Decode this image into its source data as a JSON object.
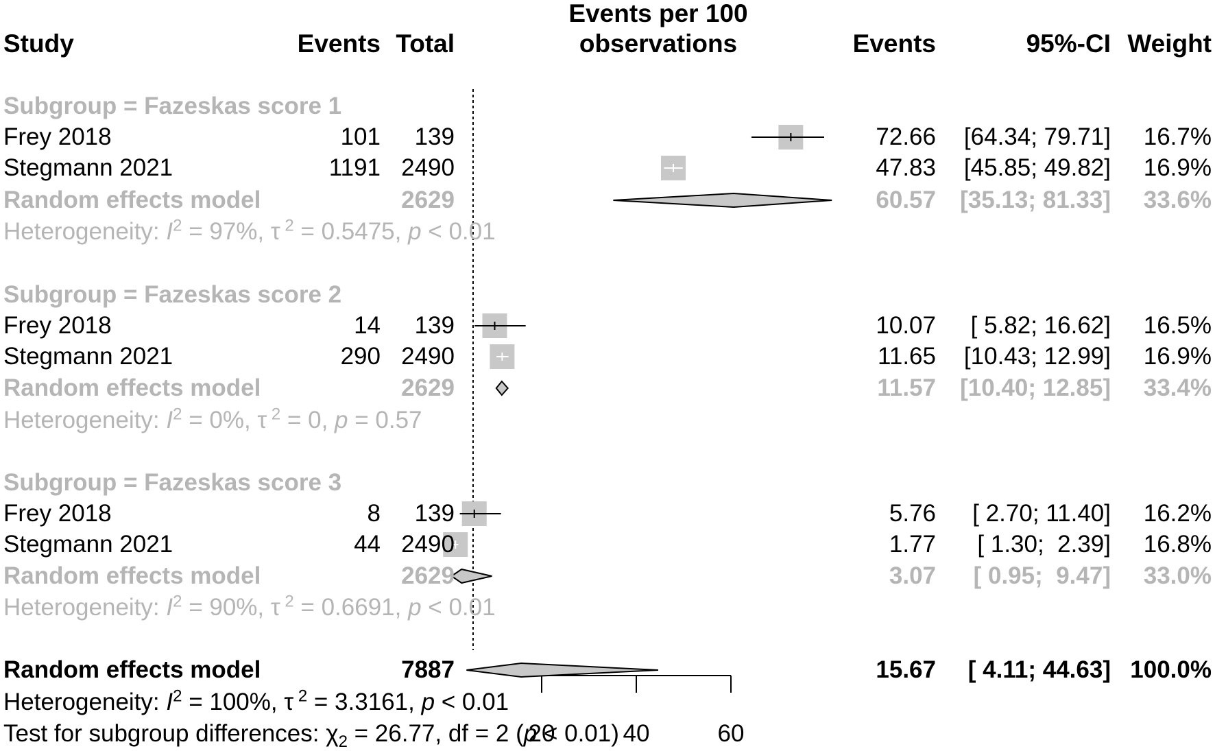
{
  "headers": {
    "study": "Study",
    "events": "Events",
    "total": "Total",
    "plot_title_line1": "Events per 100",
    "plot_title_line2": "observations",
    "events_rate": "Events",
    "ci": "95%-CI",
    "weight": "Weight"
  },
  "subgroups": [
    {
      "title": "Subgroup = Fazeskas score 1",
      "rows": [
        {
          "study": "Frey 2018",
          "events": "101",
          "total": "139",
          "rate": "72.66",
          "ci": "[64.34; 79.71]",
          "weight": "16.7%"
        },
        {
          "study": "Stegmann 2021",
          "events": "1191",
          "total": "2490",
          "rate": "47.83",
          "ci": "[45.85; 49.82]",
          "weight": "16.9%"
        }
      ],
      "model": {
        "label": "Random effects model",
        "total": "2629",
        "rate": "60.57",
        "ci": "[35.13; 81.33]",
        "weight": "33.6%"
      },
      "het": {
        "prefix": "Heterogeneity: ",
        "I": "I",
        "I2_val": " = 97%, ",
        "tau": "τ",
        "tau_val": " = 0.5475, ",
        "p": "p",
        "p_val": " < 0.01"
      }
    },
    {
      "title": "Subgroup = Fazeskas score 2",
      "rows": [
        {
          "study": "Frey 2018",
          "events": "14",
          "total": "139",
          "rate": "10.07",
          "ci": "[ 5.82; 16.62]",
          "weight": "16.5%"
        },
        {
          "study": "Stegmann 2021",
          "events": "290",
          "total": "2490",
          "rate": "11.65",
          "ci": "[10.43; 12.99]",
          "weight": "16.9%"
        }
      ],
      "model": {
        "label": "Random effects model",
        "total": "2629",
        "rate": "11.57",
        "ci": "[10.40; 12.85]",
        "weight": "33.4%"
      },
      "het": {
        "prefix": "Heterogeneity: ",
        "I": "I",
        "I2_val": " = 0%, ",
        "tau": "τ",
        "tau_val": " = 0, ",
        "p": "p",
        "p_val": " = 0.57"
      }
    },
    {
      "title": "Subgroup = Fazeskas score 3",
      "rows": [
        {
          "study": "Frey 2018",
          "events": "8",
          "total": "139",
          "rate": "5.76",
          "ci": "[ 2.70; 11.40]",
          "weight": "16.2%"
        },
        {
          "study": "Stegmann 2021",
          "events": "44",
          "total": "2490",
          "rate": "1.77",
          "ci": "[ 1.30;  2.39]",
          "weight": "16.8%"
        }
      ],
      "model": {
        "label": "Random effects model",
        "total": "2629",
        "rate": "3.07",
        "ci": "[ 0.95;  9.47]",
        "weight": "33.0%"
      },
      "het": {
        "prefix": "Heterogeneity: ",
        "I": "I",
        "I2_val": " = 90%, ",
        "tau": "τ",
        "tau_val": " = 0.6691, ",
        "p": "p",
        "p_val": " < 0.01"
      }
    }
  ],
  "overall": {
    "label": "Random effects model",
    "total": "7887",
    "rate": "15.67",
    "ci": "[ 4.11; 44.63]",
    "weight": "100.0%",
    "het": {
      "prefix": "Heterogeneity: ",
      "I": "I",
      "I2_val": " = 100%, ",
      "tau": "τ",
      "tau_val": " = 3.3161, ",
      "p": "p",
      "p_val": " < 0.01"
    },
    "test": {
      "prefix": "Test for subgroup differences: ",
      "chi": "χ",
      "chi_sub": "2",
      "chi_val": " = 26.77, df = 2 (",
      "p": "p",
      "p_val": " < 0.01)"
    }
  },
  "colors": {
    "box": "#c8c8c8",
    "diamond": "#c8c8c8",
    "line": "#000000",
    "subgroup_text": "#b5b5b5"
  },
  "chart_data": {
    "type": "forest",
    "title": "Events per 100 observations",
    "xlabel": "Events per 100 observations",
    "ticks": [
      20,
      40,
      60
    ],
    "xlim": [
      20,
      60
    ],
    "reference_line": 5.5,
    "studies": [
      {
        "subgroup": 1,
        "name": "Frey 2018",
        "est": 72.66,
        "lo": 64.34,
        "hi": 79.71,
        "weight": 16.7
      },
      {
        "subgroup": 1,
        "name": "Stegmann 2021",
        "est": 47.83,
        "lo": 45.85,
        "hi": 49.82,
        "weight": 16.9
      },
      {
        "subgroup": 2,
        "name": "Frey 2018",
        "est": 10.07,
        "lo": 5.82,
        "hi": 16.62,
        "weight": 16.5
      },
      {
        "subgroup": 2,
        "name": "Stegmann 2021",
        "est": 11.65,
        "lo": 10.43,
        "hi": 12.99,
        "weight": 16.9
      },
      {
        "subgroup": 3,
        "name": "Frey 2018",
        "est": 5.76,
        "lo": 2.7,
        "hi": 11.4,
        "weight": 16.2
      },
      {
        "subgroup": 3,
        "name": "Stegmann 2021",
        "est": 1.77,
        "lo": 1.3,
        "hi": 2.39,
        "weight": 16.8
      }
    ],
    "pooled": [
      {
        "subgroup": 1,
        "est": 60.57,
        "lo": 35.13,
        "hi": 81.33
      },
      {
        "subgroup": 2,
        "est": 11.57,
        "lo": 10.4,
        "hi": 12.85
      },
      {
        "subgroup": 3,
        "est": 3.07,
        "lo": 0.95,
        "hi": 9.47
      },
      {
        "subgroup": "overall",
        "est": 15.67,
        "lo": 4.11,
        "hi": 44.63
      }
    ]
  }
}
